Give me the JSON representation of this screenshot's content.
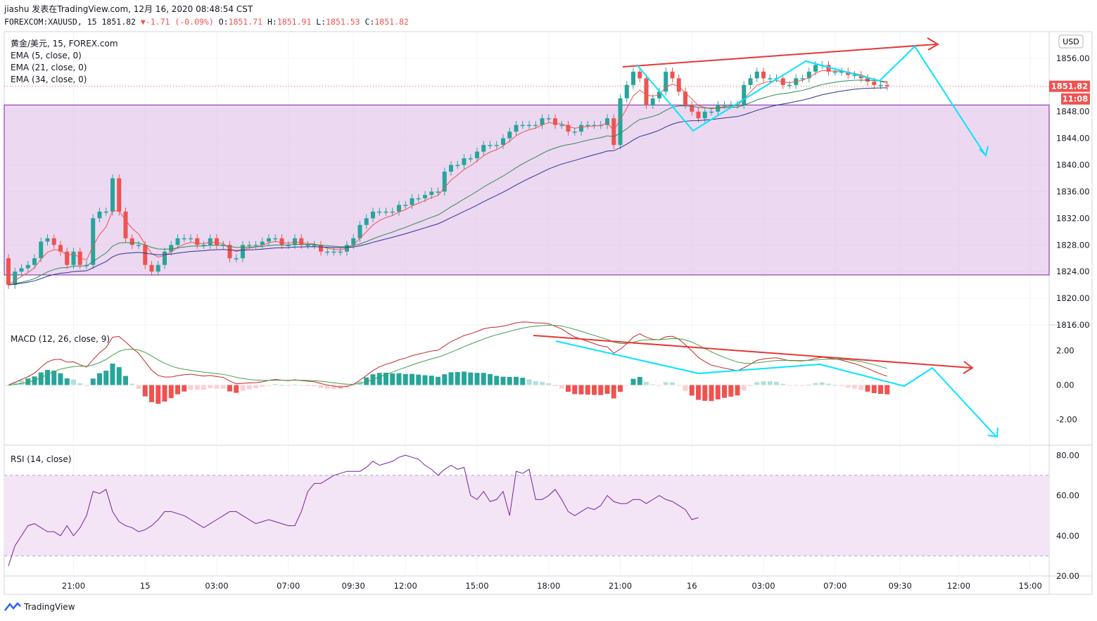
{
  "header": {
    "line1": "jiashu 发表在TradingView.com, 12月 16, 2020 08:48:54 CST",
    "symbol": "FOREXCOM:XAUUSD, 15",
    "last": "1851.82",
    "change": "-1.71 (-0.09%)",
    "o_label": "O:",
    "o": "1851.71",
    "h_label": "H:",
    "h": "1851.91",
    "l_label": "L:",
    "l": "1851.53",
    "c_label": "C:",
    "c": "1851.82"
  },
  "legend": {
    "main": "黄金/美元, 15, FOREX.com",
    "ema5": "EMA (5, close, 0)",
    "ema21": "EMA (21, close, 0)",
    "ema34": "EMA (34, close, 0)",
    "macd": "MACD (12, 26, close, 9)",
    "rsi": "RSI (14, close)"
  },
  "currency_button": "USD",
  "price_badge": "1851.82",
  "countdown_badge": "11:08",
  "footer_brand": "TradingView",
  "colors": {
    "up": "#26a69a",
    "down": "#ef5350",
    "ema5": "#ef5350",
    "ema21": "#2e8b57",
    "ema34": "#283593",
    "rect_fill": "#e1bee7",
    "rect_border": "#7b1fa2",
    "annotation_red": "#e53935",
    "annotation_cyan": "#00e5ff",
    "rsi_line": "#7b1fa2"
  },
  "chart_data": [
    {
      "type": "candlestick",
      "name": "price",
      "ylim": [
        1816,
        1860
      ],
      "yticks": [
        1816,
        1820,
        1824,
        1828,
        1832,
        1836,
        1840,
        1844,
        1848,
        1852,
        1856
      ],
      "ytick_labels": [
        "1816.00",
        "1820.00",
        "1824.00",
        "1828.00",
        "1832.00",
        "1836.00",
        "1840.00",
        "1844.00",
        "1848.00",
        "1852.00",
        "1856.00"
      ],
      "x_labels": [
        "21:00",
        "15",
        "03:00",
        "07:00",
        "09:30",
        "12:00",
        "15:00",
        "18:00",
        "21:00",
        "16",
        "03:00",
        "07:00",
        "09:30",
        "12:00",
        "15:00"
      ],
      "x_label_bars": [
        10,
        21,
        32,
        43,
        53,
        61,
        72,
        83,
        94,
        105,
        116,
        127,
        137,
        146,
        157
      ],
      "close": [
        1822,
        1824,
        1824.5,
        1825,
        1826,
        1828.5,
        1829,
        1828,
        1827,
        1825,
        1827,
        1825,
        1825,
        1832,
        1833,
        1833,
        1838,
        1833,
        1829,
        1828,
        1828,
        1825,
        1824,
        1825,
        1827,
        1828,
        1829,
        1829,
        1829,
        1828,
        1828,
        1829,
        1828,
        1828,
        1826,
        1826,
        1828,
        1828,
        1828,
        1828.5,
        1829,
        1829,
        1828,
        1828,
        1829,
        1828,
        1828,
        1828,
        1827,
        1827,
        1827,
        1827,
        1828,
        1829,
        1831,
        1832,
        1833,
        1833,
        1833,
        1833,
        1834,
        1834,
        1835,
        1835,
        1835.5,
        1836,
        1836,
        1839,
        1840,
        1840,
        1841,
        1841,
        1842,
        1843,
        1843,
        1843,
        1844,
        1845,
        1846,
        1846,
        1846,
        1846,
        1847,
        1847,
        1846,
        1846,
        1845,
        1845,
        1846,
        1846,
        1846,
        1846,
        1847,
        1843,
        1850,
        1852,
        1854,
        1853,
        1849,
        1850,
        1851,
        1854,
        1853,
        1851,
        1849,
        1848,
        1847,
        1848,
        1848,
        1849,
        1849,
        1849,
        1849,
        1852,
        1853,
        1854,
        1853,
        1853,
        1853,
        1852,
        1852,
        1853,
        1853,
        1854,
        1855,
        1855,
        1854,
        1854,
        1854,
        1853.5,
        1853.5,
        1853,
        1852.5,
        1852,
        1852,
        1851.8
      ],
      "open": [
        1826,
        1822,
        1824,
        1824.5,
        1825,
        1826,
        1828.5,
        1829,
        1828,
        1827,
        1825,
        1827,
        1825,
        1825,
        1832,
        1833,
        1833,
        1838,
        1833,
        1829,
        1828,
        1828,
        1825,
        1824,
        1825,
        1827,
        1828,
        1829,
        1829,
        1829,
        1828,
        1828,
        1829,
        1828,
        1828,
        1826,
        1826,
        1828,
        1828,
        1828,
        1828.5,
        1829,
        1829,
        1828,
        1828,
        1829,
        1828,
        1828,
        1828,
        1827,
        1827,
        1827,
        1827,
        1828,
        1829,
        1831,
        1832,
        1833,
        1833,
        1833,
        1833,
        1834,
        1834,
        1835,
        1835,
        1835.5,
        1836,
        1836,
        1839,
        1840,
        1840,
        1841,
        1841,
        1842,
        1843,
        1843,
        1843,
        1844,
        1845,
        1846,
        1846,
        1846,
        1846,
        1847,
        1847,
        1846,
        1846,
        1845,
        1845,
        1846,
        1846,
        1846,
        1846,
        1847,
        1843,
        1850,
        1852,
        1854,
        1853,
        1849,
        1850,
        1851,
        1854,
        1853,
        1851,
        1849,
        1848,
        1847,
        1848,
        1848,
        1849,
        1849,
        1849,
        1849,
        1852,
        1853,
        1854,
        1853,
        1853,
        1853,
        1852,
        1852,
        1853,
        1853,
        1854,
        1855,
        1855,
        1854,
        1854,
        1854,
        1853.5,
        1853.5,
        1853,
        1852.5,
        1852,
        1852
      ]
    },
    {
      "type": "bar+line",
      "name": "MACD",
      "ylim": [
        -3.5,
        3.5
      ],
      "yticks": [
        -2,
        0,
        2
      ],
      "ytick_labels": [
        "-2.00",
        "0.00",
        "2.00"
      ]
    },
    {
      "type": "line",
      "name": "RSI",
      "ylim": [
        20,
        85
      ],
      "yticks": [
        20,
        40,
        60,
        80
      ],
      "ytick_labels": [
        "20.00",
        "40.00",
        "60.00",
        "80.00"
      ],
      "band": [
        30,
        70
      ],
      "values": [
        25,
        35,
        40,
        45,
        46,
        44,
        42,
        42,
        40,
        45,
        40,
        44,
        50,
        62,
        61,
        63,
        52,
        47,
        45,
        44,
        42,
        43,
        45,
        48,
        52,
        52,
        51,
        50,
        48,
        46,
        44,
        46,
        48,
        50,
        52,
        52,
        50,
        48,
        46,
        47,
        48,
        47,
        46,
        45,
        45,
        52,
        62,
        66,
        66,
        68,
        70,
        71,
        72,
        72,
        72,
        74,
        77,
        75,
        76,
        77,
        79,
        80,
        79,
        78,
        75,
        73,
        70,
        73,
        75,
        73,
        74,
        60,
        58,
        62,
        57,
        58,
        62,
        50,
        72,
        71,
        73,
        58,
        58,
        60,
        63,
        58,
        52,
        50,
        52,
        54,
        53,
        55,
        60,
        57,
        56,
        56,
        58,
        58,
        56,
        58,
        60,
        58,
        57,
        55,
        53,
        48,
        49
      ]
    }
  ]
}
